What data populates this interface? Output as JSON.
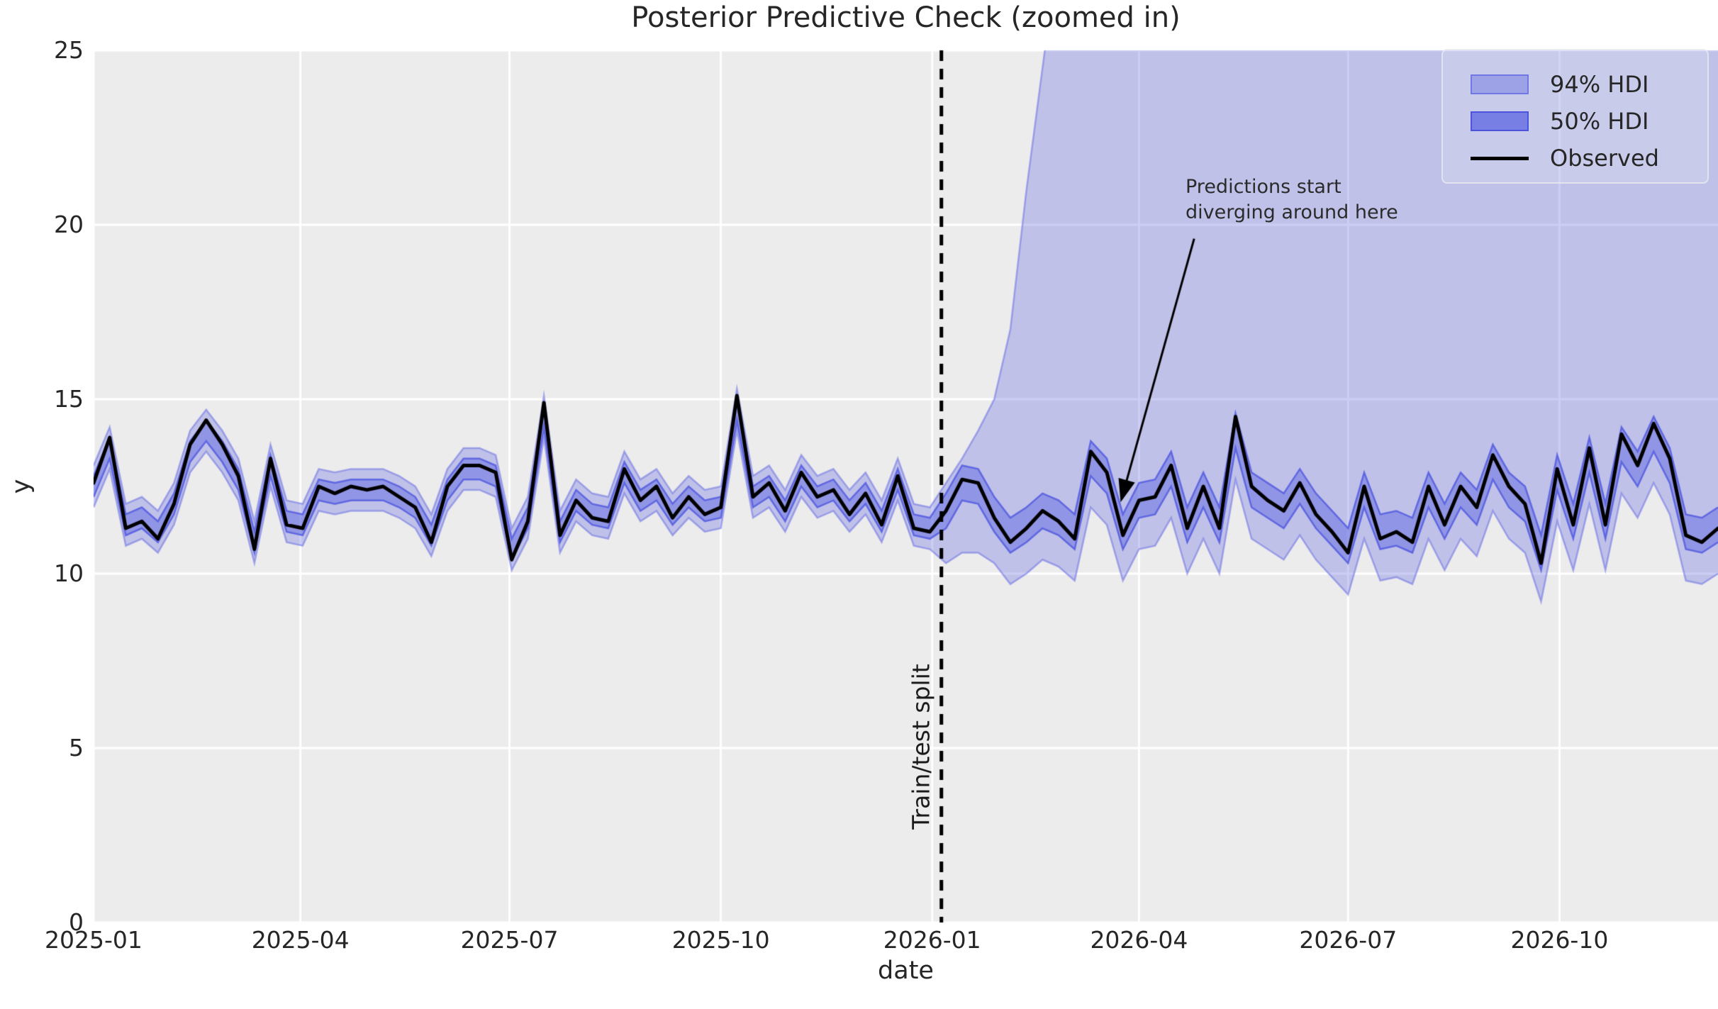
{
  "figure": {
    "title": "Posterior Predictive Check (zoomed in)"
  },
  "axes": {
    "xlabel": "date",
    "ylabel": "y"
  },
  "legend": {
    "items": [
      {
        "label": "94% HDI",
        "swatch": "hdi94-patch"
      },
      {
        "label": "50% HDI",
        "swatch": "hdi50-patch"
      },
      {
        "label": "Observed",
        "swatch": "black-line"
      }
    ]
  },
  "annotations": {
    "split_label": "Train/test split",
    "callout_line1": "Predictions start",
    "callout_line2": "diverging around here"
  },
  "colors": {
    "band_base": "#696fe3",
    "band94_fill": "rgba(105,112,227,0.34)",
    "band94_edge": "rgba(105,112,227,0.55)",
    "band50_fill": "rgba(97,105,226,0.50)",
    "band50_edge": "rgba(84,92,224,0.85)",
    "observed": "#000000",
    "plot_bg": "#ececec",
    "grid": "#ffffff",
    "text": "#262626"
  },
  "chart_data": {
    "type": "line",
    "title": "Posterior Predictive Check (zoomed in)",
    "xlabel": "date",
    "ylabel": "y",
    "ylim": [
      0,
      25
    ],
    "x_start_date": "2025-01-01",
    "x_step_days": 7,
    "xlim_days": 707,
    "split_day": 369,
    "grid": true,
    "legend_position": "upper right",
    "x_ticks": [
      {
        "day": 0,
        "label": "2025-01"
      },
      {
        "day": 90,
        "label": "2025-04"
      },
      {
        "day": 181,
        "label": "2025-07"
      },
      {
        "day": 273,
        "label": "2025-10"
      },
      {
        "day": 365,
        "label": "2026-01"
      },
      {
        "day": 455,
        "label": "2026-04"
      },
      {
        "day": 546,
        "label": "2026-07"
      },
      {
        "day": 638,
        "label": "2026-10"
      }
    ],
    "y_ticks": [
      0,
      5,
      10,
      15,
      20,
      25
    ],
    "observed": [
      12.6,
      13.9,
      11.3,
      11.5,
      11.0,
      12.0,
      13.7,
      14.4,
      13.7,
      12.8,
      10.7,
      13.3,
      11.4,
      11.3,
      12.5,
      12.3,
      12.5,
      12.4,
      12.5,
      12.2,
      11.9,
      10.9,
      12.5,
      13.1,
      13.1,
      12.9,
      10.4,
      11.5,
      14.9,
      11.1,
      12.1,
      11.6,
      11.5,
      13.0,
      12.1,
      12.5,
      11.6,
      12.2,
      11.7,
      11.9,
      15.1,
      12.2,
      12.6,
      11.8,
      12.9,
      12.2,
      12.4,
      11.7,
      12.3,
      11.4,
      12.8,
      11.3,
      11.2,
      11.8,
      12.7,
      12.6,
      11.6,
      10.9,
      11.3,
      11.8,
      11.5,
      11.0,
      13.5,
      12.9,
      11.1,
      12.1,
      12.2,
      13.1,
      11.3,
      12.5,
      11.3,
      14.5,
      12.5,
      12.1,
      11.8,
      12.6,
      11.7,
      11.2,
      10.6,
      12.5,
      11.0,
      11.2,
      10.9,
      12.5,
      11.4,
      12.5,
      11.9,
      13.4,
      12.5,
      12.0,
      10.3,
      13.0,
      11.4,
      13.6,
      11.4,
      14.0,
      13.1,
      14.3,
      13.3,
      11.1,
      10.9,
      11.3
    ],
    "hdi94_upper": [
      13.1,
      14.2,
      12.0,
      12.2,
      11.8,
      12.6,
      14.1,
      14.7,
      14.1,
      13.3,
      11.5,
      13.7,
      12.1,
      12.0,
      13.0,
      12.9,
      13.0,
      13.0,
      13.0,
      12.8,
      12.5,
      11.7,
      13.0,
      13.6,
      13.6,
      13.4,
      11.3,
      12.2,
      15.1,
      11.8,
      12.7,
      12.3,
      12.2,
      13.5,
      12.7,
      13.0,
      12.3,
      12.8,
      12.4,
      12.5,
      15.3,
      12.8,
      13.1,
      12.4,
      13.4,
      12.8,
      13.0,
      12.4,
      12.9,
      12.1,
      13.3,
      12.0,
      11.9,
      12.6,
      13.3,
      14.1,
      15.0,
      17.0,
      21.0,
      24.5,
      28.0,
      31.5,
      34.0,
      34.0,
      34.0,
      34.0,
      34.0,
      34.0,
      34.0,
      34.0,
      34.0,
      34.0,
      34.0,
      34.0,
      34.0,
      34.0,
      34.0,
      34.0,
      34.0,
      34.0,
      34.0,
      34.0,
      34.0,
      34.0,
      34.0,
      34.0,
      34.0,
      34.0,
      34.0,
      34.0,
      34.0,
      34.0,
      34.0,
      34.0,
      34.0,
      34.0,
      34.0,
      34.0,
      34.0,
      34.0,
      34.0,
      34.0
    ],
    "hdi94_lower": [
      11.9,
      13.0,
      10.8,
      11.0,
      10.6,
      11.4,
      12.9,
      13.5,
      12.9,
      12.1,
      10.3,
      12.5,
      10.9,
      10.8,
      11.8,
      11.7,
      11.8,
      11.8,
      11.8,
      11.6,
      11.3,
      10.5,
      11.8,
      12.4,
      12.4,
      12.2,
      10.1,
      11.0,
      13.9,
      10.6,
      11.5,
      11.1,
      11.0,
      12.3,
      11.5,
      11.8,
      11.1,
      11.6,
      11.2,
      11.3,
      14.1,
      11.6,
      11.9,
      11.2,
      12.2,
      11.6,
      11.8,
      11.2,
      11.7,
      10.9,
      12.1,
      10.8,
      10.7,
      10.3,
      10.6,
      10.6,
      10.3,
      9.7,
      10.0,
      10.4,
      10.2,
      9.8,
      11.9,
      11.4,
      9.8,
      10.7,
      10.8,
      11.6,
      10.0,
      11.0,
      10.0,
      12.7,
      11.0,
      10.7,
      10.4,
      11.1,
      10.4,
      9.9,
      9.4,
      11.0,
      9.8,
      9.9,
      9.7,
      11.0,
      10.1,
      11.0,
      10.5,
      11.8,
      11.0,
      10.6,
      9.2,
      11.5,
      10.1,
      12.0,
      10.1,
      12.3,
      11.6,
      12.6,
      11.7,
      9.8,
      9.7,
      10.0
    ],
    "hdi50_upper": [
      12.8,
      13.9,
      11.7,
      11.9,
      11.5,
      12.3,
      13.8,
      14.4,
      13.8,
      13.0,
      11.2,
      13.4,
      11.8,
      11.7,
      12.7,
      12.6,
      12.7,
      12.7,
      12.7,
      12.5,
      12.2,
      11.4,
      12.7,
      13.3,
      13.3,
      13.1,
      11.0,
      11.9,
      14.8,
      11.5,
      12.4,
      12.0,
      11.9,
      13.2,
      12.4,
      12.7,
      12.0,
      12.5,
      12.1,
      12.2,
      15.0,
      12.5,
      12.8,
      12.1,
      13.1,
      12.5,
      12.7,
      12.1,
      12.6,
      11.8,
      13.0,
      11.7,
      11.6,
      12.3,
      13.1,
      13.0,
      12.2,
      11.6,
      11.9,
      12.3,
      12.1,
      11.7,
      13.8,
      13.3,
      11.7,
      12.6,
      12.7,
      13.5,
      11.9,
      12.9,
      11.9,
      14.6,
      12.9,
      12.6,
      12.3,
      13.0,
      12.3,
      11.8,
      11.3,
      12.9,
      11.7,
      11.8,
      11.6,
      12.9,
      12.0,
      12.9,
      12.4,
      13.7,
      12.9,
      12.5,
      11.1,
      13.4,
      12.0,
      13.9,
      12.0,
      14.2,
      13.5,
      14.5,
      13.6,
      11.7,
      11.6,
      11.9
    ],
    "hdi50_lower": [
      12.2,
      13.3,
      11.1,
      11.3,
      10.9,
      11.7,
      13.2,
      13.8,
      13.2,
      12.4,
      10.6,
      12.8,
      11.2,
      11.1,
      12.1,
      12.0,
      12.1,
      12.1,
      12.1,
      11.9,
      11.6,
      10.8,
      12.1,
      12.7,
      12.7,
      12.5,
      10.4,
      11.3,
      14.2,
      10.9,
      11.8,
      11.4,
      11.3,
      12.6,
      11.8,
      12.1,
      11.4,
      11.9,
      11.5,
      11.6,
      14.4,
      11.9,
      12.2,
      11.5,
      12.5,
      11.9,
      12.1,
      11.5,
      12.0,
      11.2,
      12.4,
      11.1,
      11.0,
      11.3,
      12.1,
      12.0,
      11.2,
      10.6,
      10.9,
      11.3,
      11.1,
      10.7,
      12.8,
      12.3,
      10.7,
      11.6,
      11.7,
      12.5,
      10.9,
      11.9,
      10.9,
      13.6,
      11.9,
      11.6,
      11.3,
      12.0,
      11.3,
      10.8,
      10.3,
      11.9,
      10.7,
      10.8,
      10.6,
      11.9,
      11.0,
      11.9,
      11.4,
      12.7,
      11.9,
      11.5,
      10.1,
      12.4,
      11.0,
      12.9,
      11.0,
      13.2,
      12.5,
      13.5,
      12.6,
      10.7,
      10.6,
      10.9
    ],
    "arrow": {
      "start_day": 479,
      "start_y": 19.6,
      "tip_day": 447,
      "tip_y": 12.05
    }
  }
}
